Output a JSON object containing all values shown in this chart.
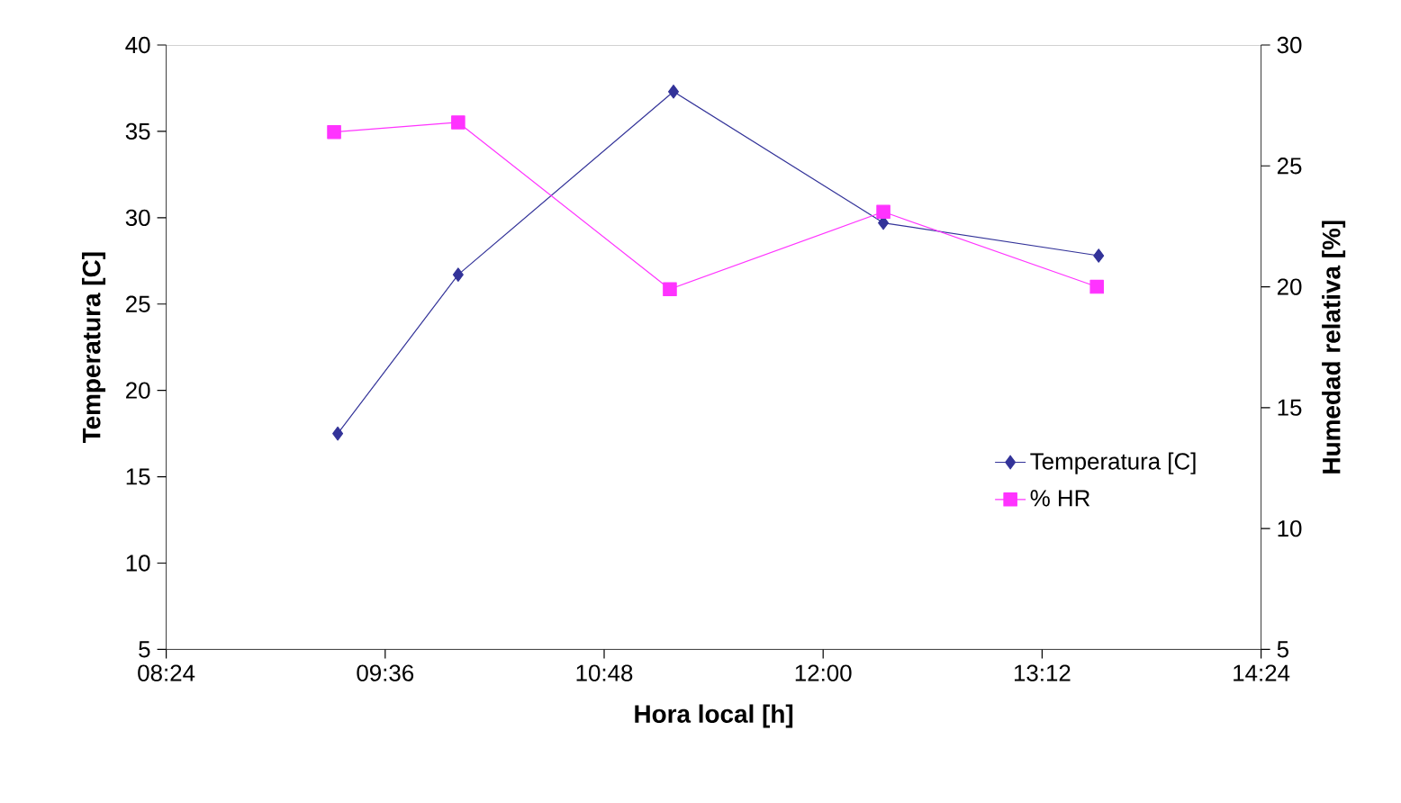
{
  "chart_data": {
    "type": "line",
    "xlabel": "Hora local [h]",
    "ylabel": "Temperatura [C]",
    "y2label": "Humedad relativa [%]",
    "xlim": [
      8.4,
      14.4
    ],
    "xticks": [
      {
        "value": 8.4,
        "label": "08:24"
      },
      {
        "value": 9.6,
        "label": "09:36"
      },
      {
        "value": 10.8,
        "label": "10:48"
      },
      {
        "value": 12.0,
        "label": "12:00"
      },
      {
        "value": 13.2,
        "label": "13:12"
      },
      {
        "value": 14.4,
        "label": "14:24"
      }
    ],
    "ylim": [
      5,
      40
    ],
    "yticks": [
      5,
      10,
      15,
      20,
      25,
      30,
      35,
      40
    ],
    "y2lim": [
      5,
      30
    ],
    "y2ticks": [
      5,
      10,
      15,
      20,
      25,
      30
    ],
    "legend": "bottom right",
    "grid": false,
    "series": [
      {
        "name": "Temperatura [C]",
        "color": "#333399",
        "marker": "diamond",
        "x": [
          9.34,
          10.0,
          11.18,
          12.33,
          13.51
        ],
        "values": [
          17.5,
          26.7,
          37.3,
          29.7,
          27.8
        ]
      },
      {
        "name": "% HR",
        "color": "#ff33ff",
        "marker": "square",
        "axis": "y2",
        "x": [
          9.32,
          10.0,
          11.16,
          12.33,
          13.5
        ],
        "values": [
          26.4,
          26.8,
          19.9,
          23.1,
          20.0
        ]
      }
    ]
  }
}
